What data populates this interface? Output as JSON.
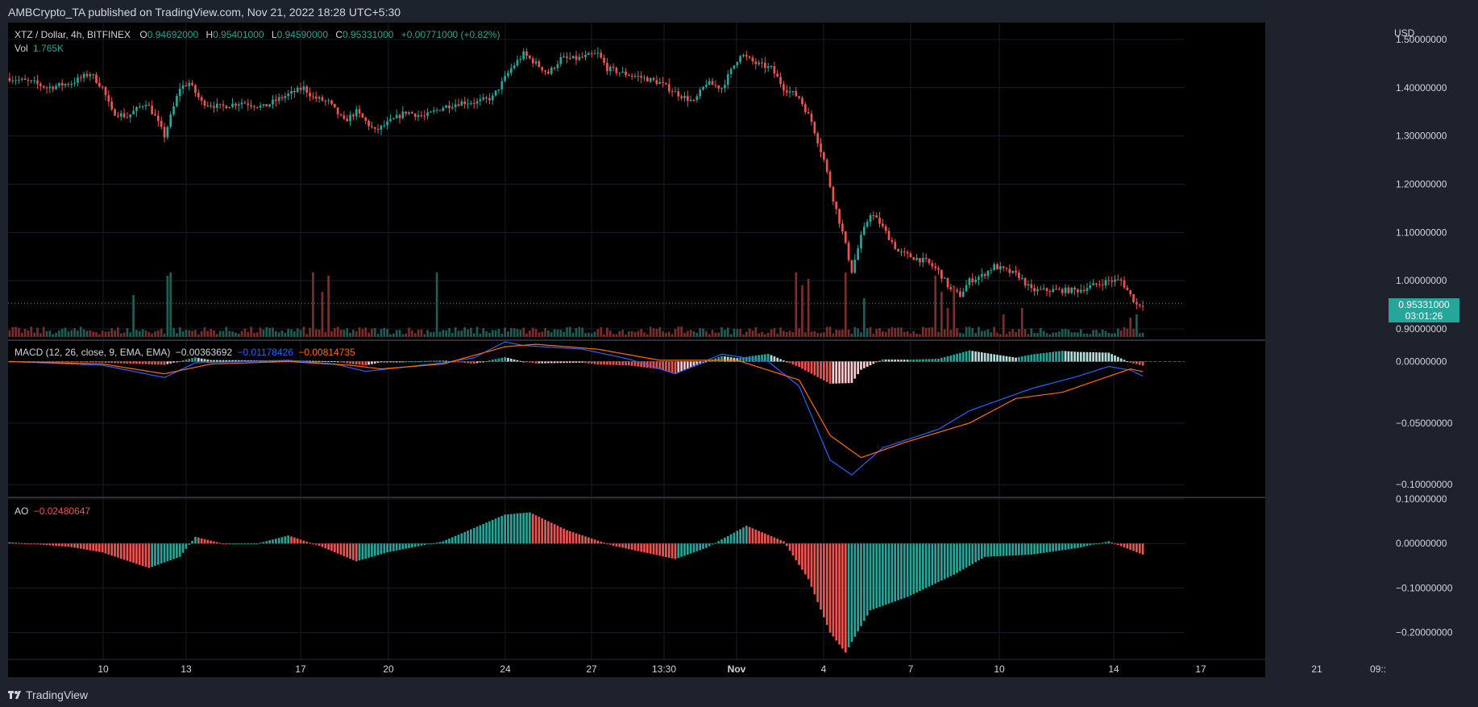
{
  "header": {
    "published": "AMBCrypto_TA published on TradingView.com, Nov 21, 2022 18:28 UTC+5:30"
  },
  "legend": {
    "symbol": "XTZ / Dollar, 4h, BITFINEX",
    "o_label": "O",
    "o": "0.94692000",
    "h_label": "H",
    "h": "0.95401000",
    "l_label": "L",
    "l": "0.94590000",
    "c_label": "C",
    "c": "0.95331000",
    "change": "+0.00771000 (+0.82%)",
    "vol_label": "Vol",
    "vol": "1.765K",
    "macd_label": "MACD (12, 26, close, 9, EMA, EMA)",
    "macd_hist": "−0.00363692",
    "macd_line": "−0.01178426",
    "macd_signal": "−0.00814735",
    "ao_label": "AO",
    "ao": "−0.02480647"
  },
  "price_badge": {
    "price": "0.95331000",
    "countdown": "03:01:26"
  },
  "footer": {
    "brand": "TradingView"
  },
  "colors": {
    "up": "#26a69a",
    "down": "#ef5350",
    "macd": "#2962ff",
    "signal": "#ff6d00",
    "bg": "#000000",
    "frame": "#1e222d"
  },
  "chart_data": [
    {
      "type": "candlestick",
      "title": "XTZ / Dollar, 4h, BITFINEX",
      "currency": "USD",
      "x_ticks": [
        "10",
        "13",
        "17",
        "20",
        "24",
        "27",
        "13:30",
        "Nov",
        "4",
        "7",
        "10",
        "14",
        "17",
        "21",
        "09::"
      ],
      "y_ticks": [
        "1.50000000",
        "1.40000000",
        "1.30000000",
        "1.20000000",
        "1.10000000",
        "1.00000000",
        "0.90000000"
      ],
      "ylim": [
        0.88,
        1.535
      ],
      "close_path": [
        [
          0,
          1.42
        ],
        [
          8,
          1.41
        ],
        [
          12,
          1.4
        ],
        [
          20,
          1.41
        ],
        [
          26,
          1.43
        ],
        [
          30,
          1.4
        ],
        [
          33,
          1.35
        ],
        [
          38,
          1.34
        ],
        [
          44,
          1.37
        ],
        [
          47,
          1.34
        ],
        [
          50,
          1.3
        ],
        [
          53,
          1.36
        ],
        [
          55,
          1.4
        ],
        [
          58,
          1.41
        ],
        [
          62,
          1.37
        ],
        [
          68,
          1.36
        ],
        [
          75,
          1.37
        ],
        [
          82,
          1.36
        ],
        [
          88,
          1.38
        ],
        [
          95,
          1.4
        ],
        [
          98,
          1.38
        ],
        [
          103,
          1.37
        ],
        [
          108,
          1.33
        ],
        [
          112,
          1.35
        ],
        [
          118,
          1.31
        ],
        [
          123,
          1.33
        ],
        [
          128,
          1.35
        ],
        [
          134,
          1.34
        ],
        [
          140,
          1.36
        ],
        [
          146,
          1.37
        ],
        [
          151,
          1.37
        ],
        [
          156,
          1.38
        ],
        [
          162,
          1.44
        ],
        [
          166,
          1.47
        ],
        [
          170,
          1.45
        ],
        [
          174,
          1.43
        ],
        [
          178,
          1.46
        ],
        [
          183,
          1.46
        ],
        [
          190,
          1.47
        ],
        [
          193,
          1.44
        ],
        [
          198,
          1.43
        ],
        [
          205,
          1.42
        ],
        [
          210,
          1.41
        ],
        [
          215,
          1.39
        ],
        [
          221,
          1.37
        ],
        [
          225,
          1.41
        ],
        [
          230,
          1.4
        ],
        [
          236,
          1.47
        ],
        [
          241,
          1.45
        ],
        [
          246,
          1.44
        ],
        [
          250,
          1.4
        ],
        [
          255,
          1.38
        ],
        [
          259,
          1.33
        ],
        [
          263,
          1.25
        ],
        [
          266,
          1.17
        ],
        [
          269,
          1.1
        ],
        [
          272,
          1.02
        ],
        [
          275,
          1.09
        ],
        [
          278,
          1.14
        ],
        [
          281,
          1.12
        ],
        [
          284,
          1.09
        ],
        [
          287,
          1.06
        ],
        [
          291,
          1.05
        ],
        [
          296,
          1.04
        ],
        [
          300,
          1.02
        ],
        [
          304,
          0.98
        ],
        [
          307,
          0.97
        ],
        [
          310,
          1.0
        ],
        [
          314,
          1.01
        ],
        [
          318,
          1.03
        ],
        [
          322,
          1.02
        ],
        [
          326,
          1.01
        ],
        [
          330,
          0.98
        ],
        [
          335,
          0.98
        ],
        [
          340,
          0.98
        ],
        [
          345,
          0.98
        ],
        [
          350,
          0.99
        ],
        [
          355,
          1.0
        ],
        [
          359,
          1.0
        ],
        [
          362,
          0.97
        ],
        [
          364,
          0.95
        ],
        [
          366,
          0.953
        ]
      ],
      "volume_spikes": [
        [
          40,
          0.65
        ],
        [
          51,
          0.95
        ],
        [
          52,
          1.0
        ],
        [
          98,
          1.0
        ],
        [
          101,
          0.7
        ],
        [
          103,
          0.95
        ],
        [
          138,
          1.0
        ],
        [
          254,
          1.0
        ],
        [
          256,
          0.8
        ],
        [
          258,
          0.9
        ],
        [
          270,
          1.0
        ],
        [
          276,
          0.6
        ],
        [
          299,
          0.95
        ],
        [
          301,
          0.7
        ],
        [
          303,
          0.45
        ],
        [
          305,
          0.8
        ],
        [
          321,
          0.35
        ],
        [
          327,
          0.45
        ],
        [
          362,
          0.3
        ],
        [
          364,
          0.35
        ]
      ],
      "volume_last": "1.765K"
    },
    {
      "type": "line",
      "title": "MACD (12, 26, close, 9, EMA, EMA)",
      "y_ticks": [
        "0.00000000",
        "−0.05000000",
        "−0.10000000"
      ],
      "ylim": [
        -0.109,
        0.016
      ],
      "series": [
        {
          "name": "MACD",
          "points": [
            [
              0,
              0
            ],
            [
              30,
              -0.003
            ],
            [
              50,
              -0.013
            ],
            [
              60,
              -0.001
            ],
            [
              90,
              0.001
            ],
            [
              105,
              -0.002
            ],
            [
              115,
              -0.008
            ],
            [
              140,
              -0.001
            ],
            [
              150,
              0.003
            ],
            [
              160,
              0.016
            ],
            [
              166,
              0.013
            ],
            [
              185,
              0.01
            ],
            [
              200,
              0.002
            ],
            [
              215,
              -0.01
            ],
            [
              230,
              0.006
            ],
            [
              245,
              0.0
            ],
            [
              255,
              -0.02
            ],
            [
              265,
              -0.08
            ],
            [
              272,
              -0.092
            ],
            [
              282,
              -0.07
            ],
            [
              300,
              -0.055
            ],
            [
              310,
              -0.04
            ],
            [
              330,
              -0.022
            ],
            [
              345,
              -0.012
            ],
            [
              355,
              -0.004
            ],
            [
              362,
              -0.007
            ],
            [
              366,
              -0.01178426
            ]
          ]
        },
        {
          "name": "Signal",
          "points": [
            [
              0,
              0
            ],
            [
              30,
              -0.002
            ],
            [
              50,
              -0.01
            ],
            [
              65,
              -0.002
            ],
            [
              90,
              0.0
            ],
            [
              110,
              -0.003
            ],
            [
              120,
              -0.006
            ],
            [
              140,
              -0.002
            ],
            [
              160,
              0.012
            ],
            [
              170,
              0.014
            ],
            [
              190,
              0.01
            ],
            [
              210,
              0.001
            ],
            [
              235,
              0.001
            ],
            [
              255,
              -0.015
            ],
            [
              265,
              -0.06
            ],
            [
              275,
              -0.078
            ],
            [
              290,
              -0.065
            ],
            [
              310,
              -0.05
            ],
            [
              325,
              -0.03
            ],
            [
              340,
              -0.025
            ],
            [
              355,
              -0.012
            ],
            [
              362,
              -0.006
            ],
            [
              366,
              -0.00814735
            ]
          ]
        }
      ],
      "histogram_last": -0.00363692
    },
    {
      "type": "bar",
      "title": "AO",
      "y_ticks": [
        "0.10000000",
        "0.00000000",
        "−0.10000000",
        "−0.20000000"
      ],
      "ylim": [
        -0.255,
        0.1
      ],
      "envelope": [
        [
          0,
          0.003
        ],
        [
          20,
          -0.008
        ],
        [
          30,
          -0.02
        ],
        [
          45,
          -0.055
        ],
        [
          55,
          -0.03
        ],
        [
          60,
          0.015
        ],
        [
          70,
          -0.002
        ],
        [
          80,
          0.0
        ],
        [
          90,
          0.018
        ],
        [
          100,
          -0.005
        ],
        [
          112,
          -0.04
        ],
        [
          122,
          -0.02
        ],
        [
          140,
          0.005
        ],
        [
          160,
          0.065
        ],
        [
          168,
          0.07
        ],
        [
          180,
          0.03
        ],
        [
          195,
          -0.005
        ],
        [
          215,
          -0.035
        ],
        [
          225,
          -0.01
        ],
        [
          238,
          0.04
        ],
        [
          250,
          0.005
        ],
        [
          258,
          -0.08
        ],
        [
          265,
          -0.2
        ],
        [
          270,
          -0.245
        ],
        [
          278,
          -0.15
        ],
        [
          290,
          -0.12
        ],
        [
          305,
          -0.07
        ],
        [
          315,
          -0.03
        ],
        [
          330,
          -0.025
        ],
        [
          345,
          -0.01
        ],
        [
          355,
          0.005
        ],
        [
          366,
          -0.02480647
        ]
      ],
      "last": -0.02480647
    }
  ]
}
